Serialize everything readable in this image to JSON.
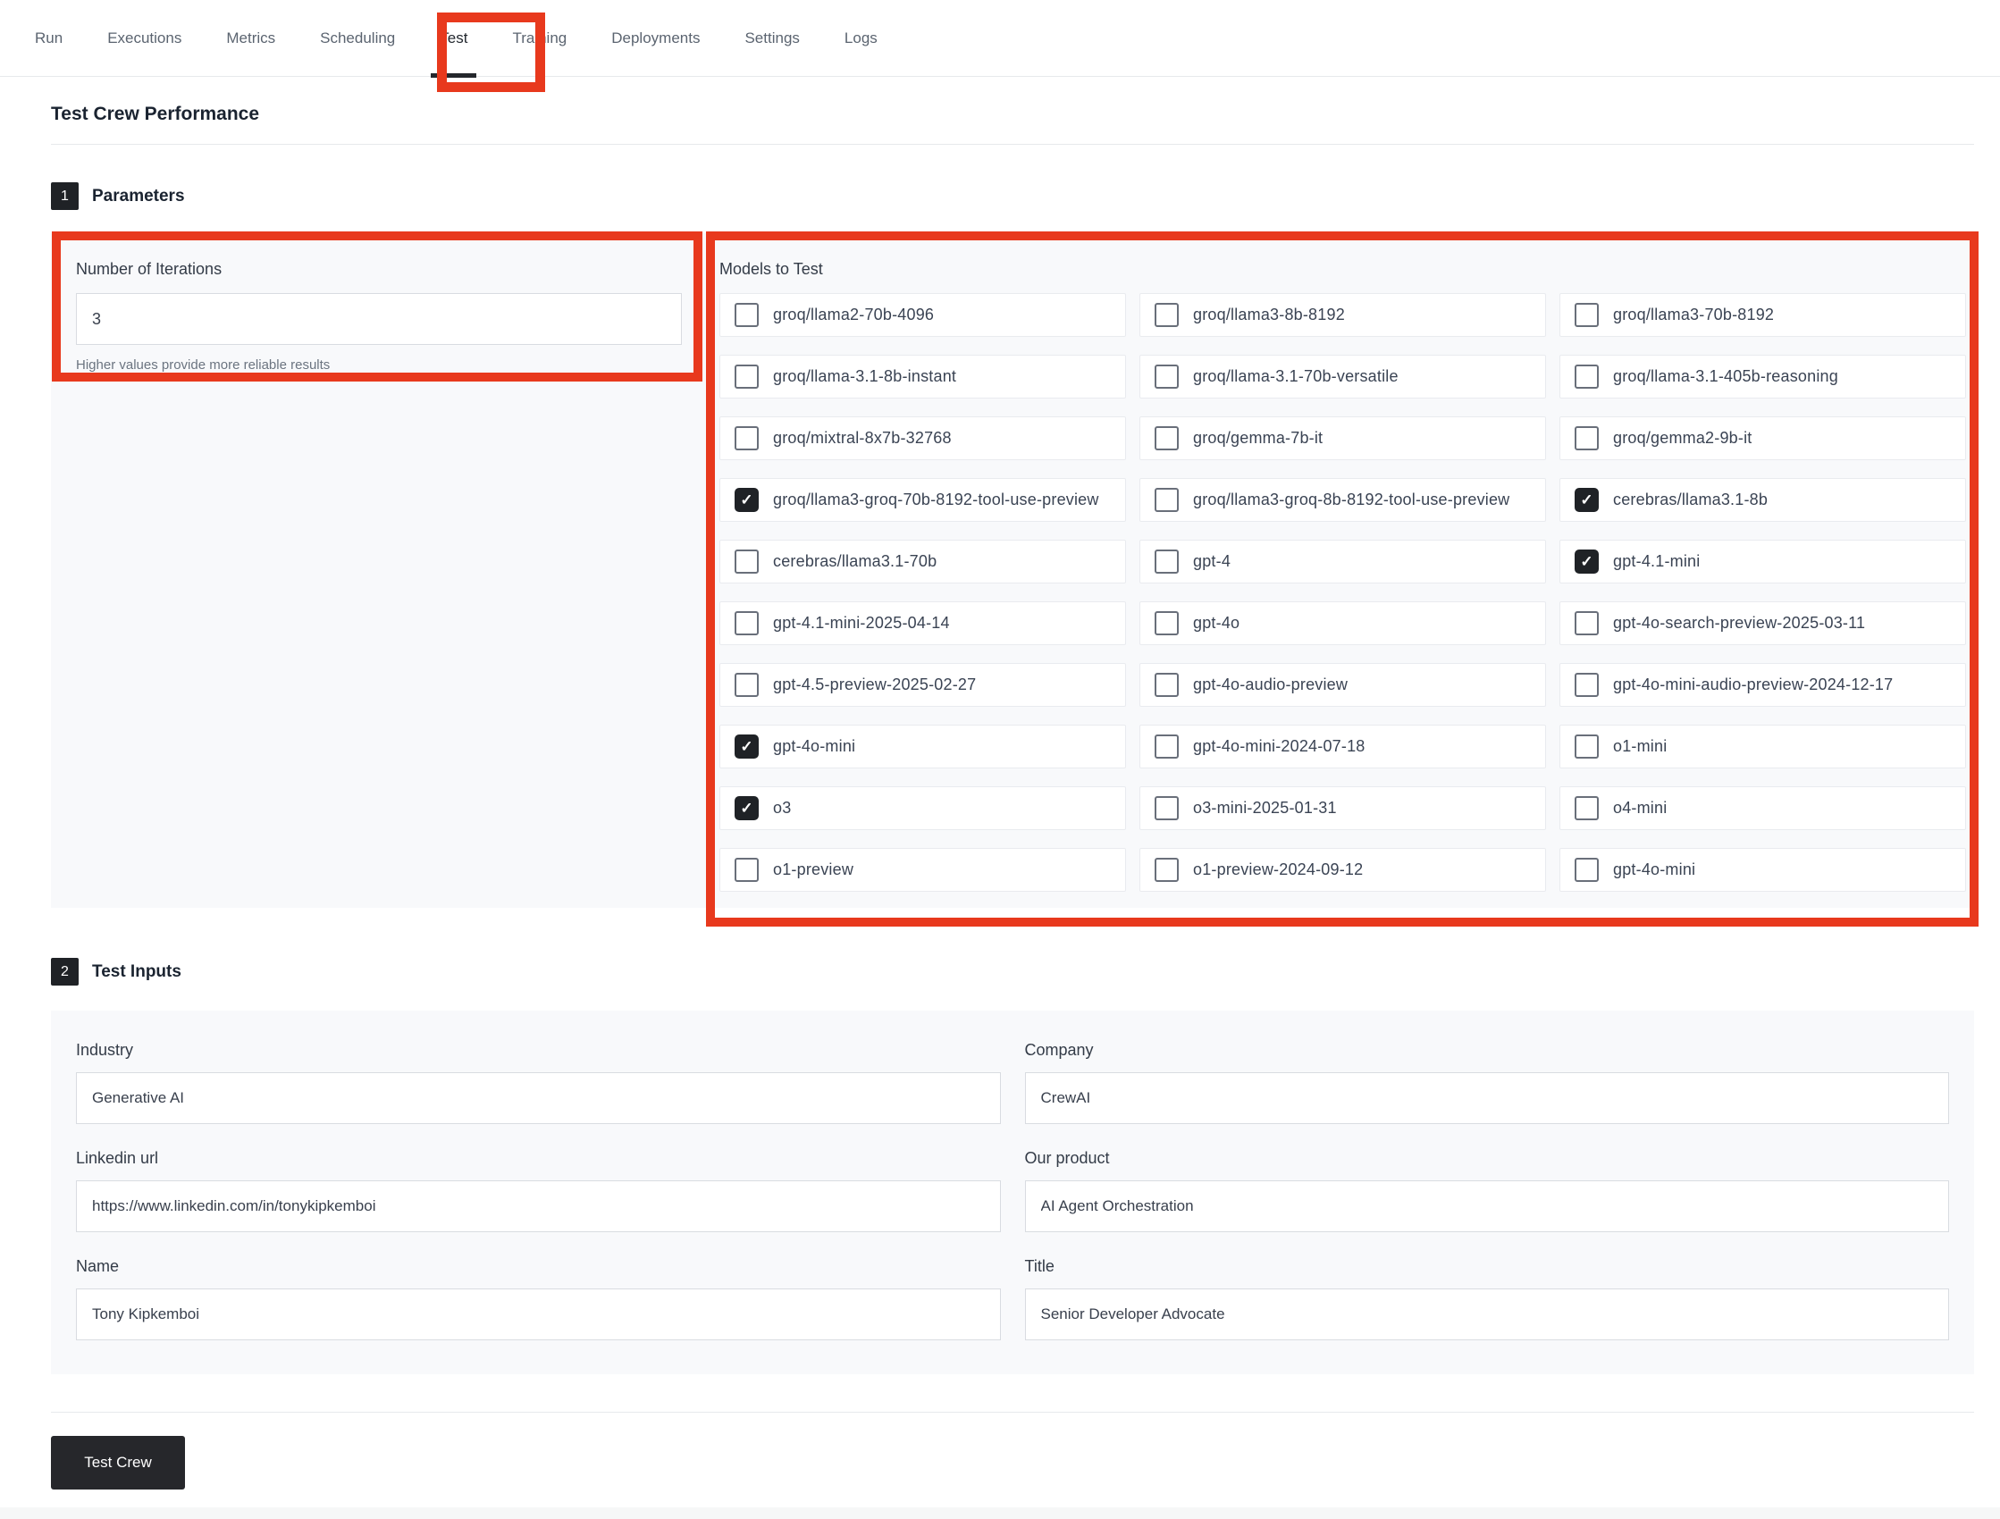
{
  "tabs": {
    "items": [
      "Run",
      "Executions",
      "Metrics",
      "Scheduling",
      "Test",
      "Training",
      "Deployments",
      "Settings",
      "Logs"
    ],
    "active": "Test"
  },
  "page": {
    "title": "Test Crew Performance"
  },
  "sections": {
    "parameters": {
      "step": "1",
      "title": "Parameters",
      "iterations": {
        "label": "Number of Iterations",
        "value": "3",
        "help": "Higher values provide more reliable results"
      },
      "models": {
        "label": "Models to Test",
        "items": [
          {
            "label": "groq/llama2-70b-4096",
            "checked": false
          },
          {
            "label": "groq/llama3-8b-8192",
            "checked": false
          },
          {
            "label": "groq/llama3-70b-8192",
            "checked": false
          },
          {
            "label": "groq/llama-3.1-8b-instant",
            "checked": false
          },
          {
            "label": "groq/llama-3.1-70b-versatile",
            "checked": false
          },
          {
            "label": "groq/llama-3.1-405b-reasoning",
            "checked": false
          },
          {
            "label": "groq/mixtral-8x7b-32768",
            "checked": false
          },
          {
            "label": "groq/gemma-7b-it",
            "checked": false
          },
          {
            "label": "groq/gemma2-9b-it",
            "checked": false
          },
          {
            "label": "groq/llama3-groq-70b-8192-tool-use-preview",
            "checked": true
          },
          {
            "label": "groq/llama3-groq-8b-8192-tool-use-preview",
            "checked": false
          },
          {
            "label": "cerebras/llama3.1-8b",
            "checked": true
          },
          {
            "label": "cerebras/llama3.1-70b",
            "checked": false
          },
          {
            "label": "gpt-4",
            "checked": false
          },
          {
            "label": "gpt-4.1-mini",
            "checked": true
          },
          {
            "label": "gpt-4.1-mini-2025-04-14",
            "checked": false
          },
          {
            "label": "gpt-4o",
            "checked": false
          },
          {
            "label": "gpt-4o-search-preview-2025-03-11",
            "checked": false
          },
          {
            "label": "gpt-4.5-preview-2025-02-27",
            "checked": false
          },
          {
            "label": "gpt-4o-audio-preview",
            "checked": false
          },
          {
            "label": "gpt-4o-mini-audio-preview-2024-12-17",
            "checked": false
          },
          {
            "label": "gpt-4o-mini",
            "checked": true
          },
          {
            "label": "gpt-4o-mini-2024-07-18",
            "checked": false
          },
          {
            "label": "o1-mini",
            "checked": false
          },
          {
            "label": "o3",
            "checked": true
          },
          {
            "label": "o3-mini-2025-01-31",
            "checked": false
          },
          {
            "label": "o4-mini",
            "checked": false
          },
          {
            "label": "o1-preview",
            "checked": false
          },
          {
            "label": "o1-preview-2024-09-12",
            "checked": false
          },
          {
            "label": "gpt-4o-mini",
            "checked": false
          }
        ]
      }
    },
    "test_inputs": {
      "step": "2",
      "title": "Test Inputs",
      "fields": [
        {
          "label": "Industry",
          "value": "Generative AI"
        },
        {
          "label": "Company",
          "value": "CrewAI"
        },
        {
          "label": "Linkedin url",
          "value": "https://www.linkedin.com/in/tonykipkemboi"
        },
        {
          "label": "Our product",
          "value": "AI Agent Orchestration"
        },
        {
          "label": "Name",
          "value": "Tony Kipkemboi"
        },
        {
          "label": "Title",
          "value": "Senior Developer Advocate"
        }
      ]
    }
  },
  "actions": {
    "test_crew_label": "Test Crew"
  },
  "annotations": {
    "highlight_color": "#e8391d",
    "checkmark_icon": "✓"
  }
}
